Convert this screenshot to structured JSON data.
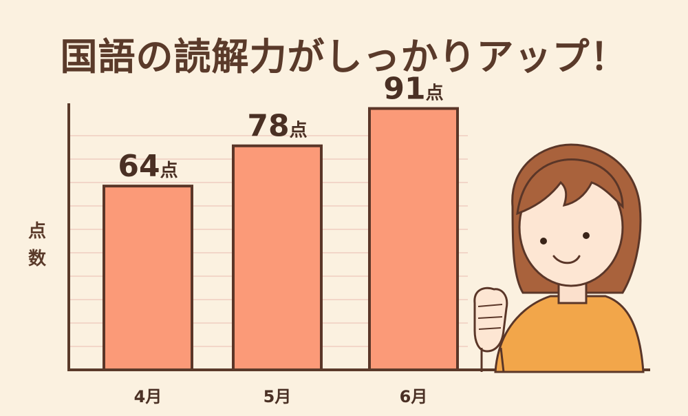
{
  "title": "国語の読解力がしっかりアップ！",
  "chart_data": {
    "type": "bar",
    "categories": [
      "4月",
      "5月",
      "6月"
    ],
    "values": [
      64,
      78,
      91
    ],
    "unit": "点",
    "ylabel": "点数",
    "xlabel": "",
    "ylim": [
      0,
      100
    ],
    "grid": true,
    "colors": {
      "bar": "#fb9a78",
      "bar_outline": "#5a3628",
      "grid": "#f2d6c8",
      "axis": "#5a3a2a"
    }
  }
}
